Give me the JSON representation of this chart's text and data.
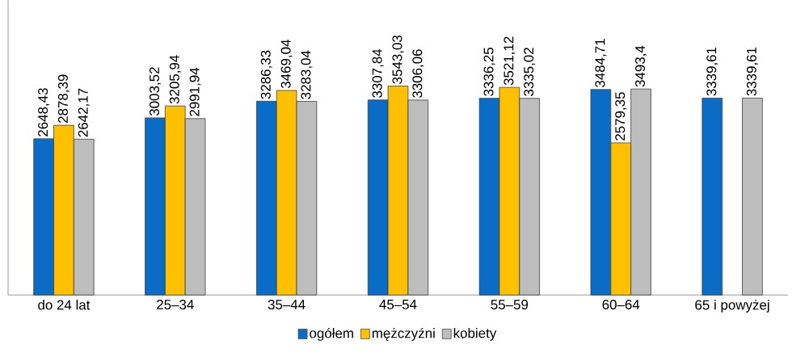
{
  "chart_data": {
    "type": "bar",
    "categories": [
      "do 24 lat",
      "25–34",
      "35–44",
      "45–54",
      "55–59",
      "60–64",
      "65 i powyżej"
    ],
    "ylim": [
      0,
      5000
    ],
    "tick_labels": "x",
    "legend": "bottom",
    "series": [
      {
        "name": "ogółem",
        "color": "#0a6cc4",
        "values": [
          2648.43,
          3003.52,
          3286.33,
          3307.84,
          3336.25,
          3484.71,
          3339.61
        ],
        "value_labels": [
          "2648,43",
          "3003,52",
          "3286,33",
          "3307,84",
          "3336,25",
          "3484,71",
          "3339,61"
        ]
      },
      {
        "name": "mężczyźni",
        "color": "#ffc000",
        "values": [
          2878.39,
          3205.94,
          3469.04,
          3543.03,
          3521.12,
          2579.35,
          null
        ],
        "value_labels": [
          "2878,39",
          "3205,94",
          "3469,04",
          "3543,03",
          "3521,12",
          "2579,35",
          null
        ]
      },
      {
        "name": "kobiety",
        "color": "#bdbdbd",
        "values": [
          2642.17,
          2991.94,
          3283.04,
          3306.06,
          3335.02,
          3493.4,
          3339.61
        ],
        "value_labels": [
          "2642,17",
          "2991,94",
          "3283,04",
          "3306,06",
          "3335,02",
          "3493,4",
          "3339,61"
        ]
      }
    ]
  }
}
